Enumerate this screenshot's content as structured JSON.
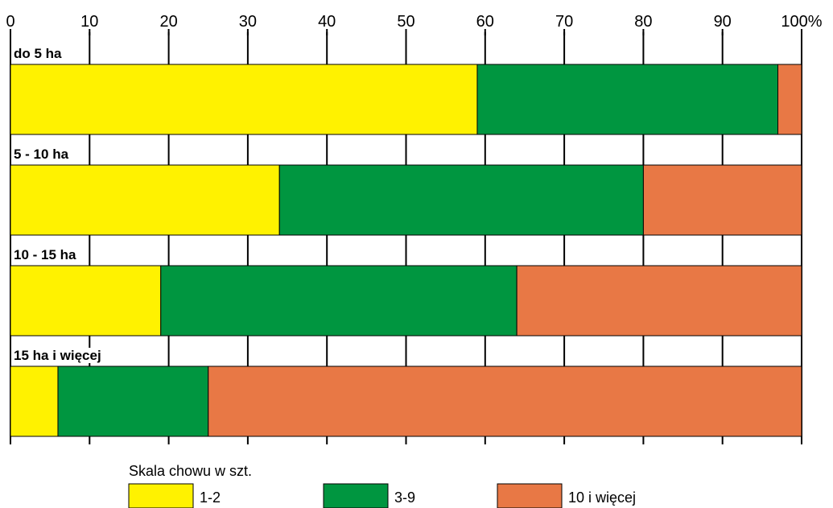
{
  "chart_data": {
    "type": "bar",
    "orientation": "horizontal",
    "stacked": true,
    "categories": [
      "do 5 ha",
      "5 - 10 ha",
      "10 - 15 ha",
      "15 ha i więcej"
    ],
    "series": [
      {
        "name": "1-2",
        "color": "#fff200",
        "values": [
          59,
          34,
          19,
          6
        ]
      },
      {
        "name": "3-9",
        "color": "#009640",
        "values": [
          38,
          46,
          45,
          19
        ]
      },
      {
        "name": "10 i więcej",
        "color": "#e87845",
        "values": [
          3,
          20,
          36,
          75
        ]
      }
    ],
    "x_ticks": [
      "0",
      "10",
      "20",
      "30",
      "40",
      "50",
      "60",
      "70",
      "80",
      "90",
      "100%"
    ],
    "xlim": [
      0,
      100
    ],
    "grid": true,
    "legend": {
      "title": "Skala chowu w szt.",
      "placement": "bottom"
    }
  }
}
